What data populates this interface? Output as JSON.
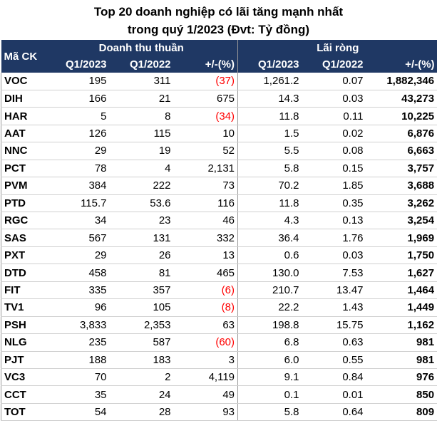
{
  "title_line1": "Top 20 doanh nghiệp có lãi tăng mạnh nhất",
  "title_line2": "trong quý 1/2023 (Đvt: Tỷ đồng)",
  "headers": {
    "code": "Mã CK",
    "revenue_group": "Doanh thu thuần",
    "profit_group": "Lãi ròng",
    "q1_2023": "Q1/2023",
    "q1_2022": "Q1/2022",
    "change": "+/-(%)"
  },
  "rows": [
    {
      "code": "VOC",
      "rev23": "195",
      "rev22": "311",
      "revchg": "(37)",
      "neg": true,
      "p23": "1,261.2",
      "p22": "0.07",
      "pchg": "1,882,346"
    },
    {
      "code": "DIH",
      "rev23": "166",
      "rev22": "21",
      "revchg": "675",
      "neg": false,
      "p23": "14.3",
      "p22": "0.03",
      "pchg": "43,273"
    },
    {
      "code": "HAR",
      "rev23": "5",
      "rev22": "8",
      "revchg": "(34)",
      "neg": true,
      "p23": "11.8",
      "p22": "0.11",
      "pchg": "10,225"
    },
    {
      "code": "AAT",
      "rev23": "126",
      "rev22": "115",
      "revchg": "10",
      "neg": false,
      "p23": "1.5",
      "p22": "0.02",
      "pchg": "6,876"
    },
    {
      "code": "NNC",
      "rev23": "29",
      "rev22": "19",
      "revchg": "52",
      "neg": false,
      "p23": "5.5",
      "p22": "0.08",
      "pchg": "6,663"
    },
    {
      "code": "PCT",
      "rev23": "78",
      "rev22": "4",
      "revchg": "2,131",
      "neg": false,
      "p23": "5.8",
      "p22": "0.15",
      "pchg": "3,757"
    },
    {
      "code": "PVM",
      "rev23": "384",
      "rev22": "222",
      "revchg": "73",
      "neg": false,
      "p23": "70.2",
      "p22": "1.85",
      "pchg": "3,688"
    },
    {
      "code": "PTD",
      "rev23": "115.7",
      "rev22": "53.6",
      "revchg": "116",
      "neg": false,
      "p23": "11.8",
      "p22": "0.35",
      "pchg": "3,262"
    },
    {
      "code": "RGC",
      "rev23": "34",
      "rev22": "23",
      "revchg": "46",
      "neg": false,
      "p23": "4.3",
      "p22": "0.13",
      "pchg": "3,254"
    },
    {
      "code": "SAS",
      "rev23": "567",
      "rev22": "131",
      "revchg": "332",
      "neg": false,
      "p23": "36.4",
      "p22": "1.76",
      "pchg": "1,969"
    },
    {
      "code": "PXT",
      "rev23": "29",
      "rev22": "26",
      "revchg": "13",
      "neg": false,
      "p23": "0.6",
      "p22": "0.03",
      "pchg": "1,750"
    },
    {
      "code": "DTD",
      "rev23": "458",
      "rev22": "81",
      "revchg": "465",
      "neg": false,
      "p23": "130.0",
      "p22": "7.53",
      "pchg": "1,627"
    },
    {
      "code": "FIT",
      "rev23": "335",
      "rev22": "357",
      "revchg": "(6)",
      "neg": true,
      "p23": "210.7",
      "p22": "13.47",
      "pchg": "1,464"
    },
    {
      "code": "TV1",
      "rev23": "96",
      "rev22": "105",
      "revchg": "(8)",
      "neg": true,
      "p23": "22.2",
      "p22": "1.43",
      "pchg": "1,449"
    },
    {
      "code": "PSH",
      "rev23": "3,833",
      "rev22": "2,353",
      "revchg": "63",
      "neg": false,
      "p23": "198.8",
      "p22": "15.75",
      "pchg": "1,162"
    },
    {
      "code": "NLG",
      "rev23": "235",
      "rev22": "587",
      "revchg": "(60)",
      "neg": true,
      "p23": "6.8",
      "p22": "0.63",
      "pchg": "981"
    },
    {
      "code": "PJT",
      "rev23": "188",
      "rev22": "183",
      "revchg": "3",
      "neg": false,
      "p23": "6.0",
      "p22": "0.55",
      "pchg": "981"
    },
    {
      "code": "VC3",
      "rev23": "70",
      "rev22": "2",
      "revchg": "4,119",
      "neg": false,
      "p23": "9.1",
      "p22": "0.84",
      "pchg": "976"
    },
    {
      "code": "CCT",
      "rev23": "35",
      "rev22": "24",
      "revchg": "49",
      "neg": false,
      "p23": "0.1",
      "p22": "0.01",
      "pchg": "850"
    },
    {
      "code": "TOT",
      "rev23": "54",
      "rev22": "28",
      "revchg": "93",
      "neg": false,
      "p23": "5.8",
      "p22": "0.64",
      "pchg": "809"
    }
  ]
}
